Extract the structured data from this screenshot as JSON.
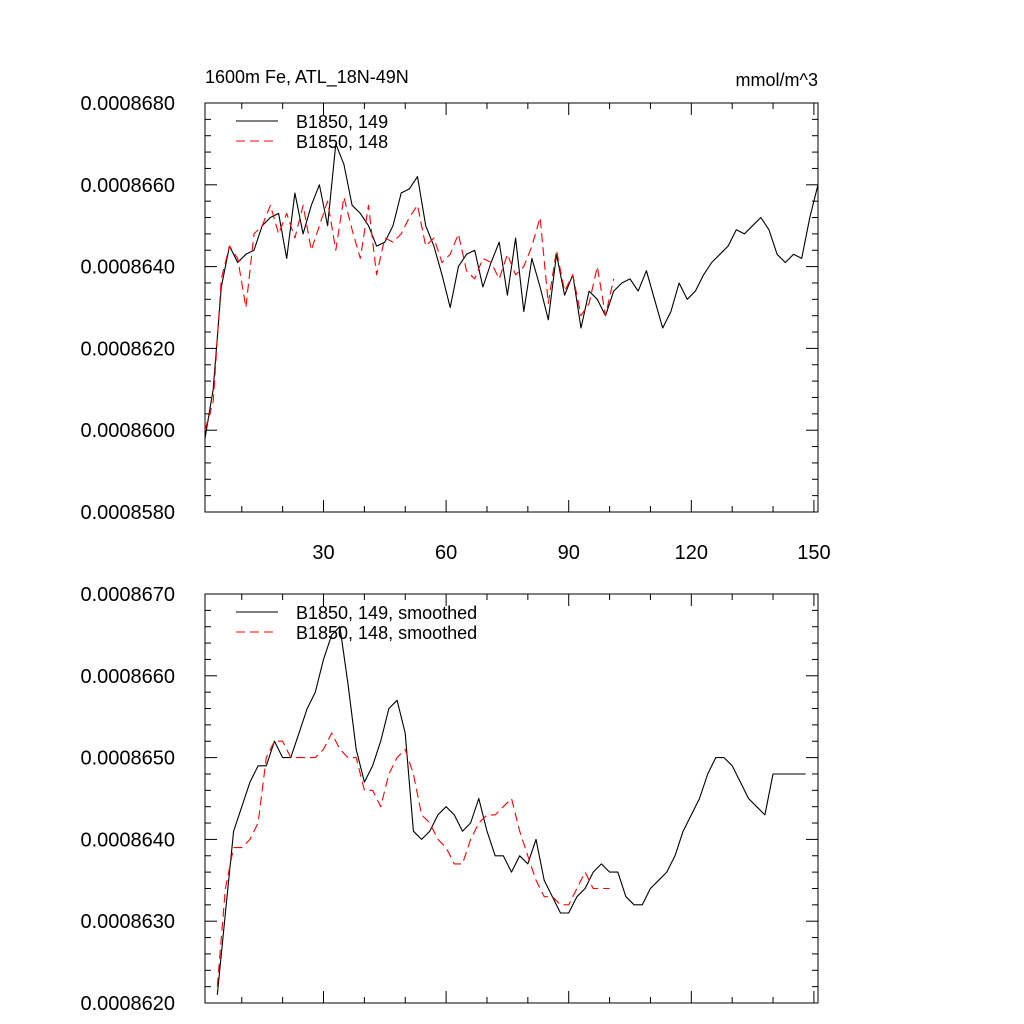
{
  "chart_data": [
    {
      "type": "line",
      "title": "1600m Fe, ATL_18N-49N",
      "units": "mmol/m^3",
      "xlim": [
        1,
        151
      ],
      "ylim": [
        0.000858,
        0.000868
      ],
      "x_ticks": [
        30,
        60,
        90,
        120,
        150
      ],
      "x_tick_labels": [
        "30",
        "60",
        "90",
        "120",
        "150"
      ],
      "y_ticks": [
        0.000858,
        0.00086,
        0.000862,
        0.000864,
        0.000866,
        0.000868
      ],
      "y_tick_labels": [
        "0.0008580",
        "0.0008600",
        "0.0008620",
        "0.0008640",
        "0.0008660",
        "0.0008680"
      ],
      "grid": false,
      "legend": "top-left",
      "series": [
        {
          "name": "B1850, 149",
          "color": "#000000",
          "dash": "solid",
          "x": [
            1,
            3,
            5,
            7,
            9,
            11,
            13,
            15,
            17,
            19,
            21,
            23,
            25,
            27,
            29,
            31,
            33,
            35,
            37,
            39,
            41,
            43,
            45,
            47,
            49,
            51,
            53,
            55,
            57,
            59,
            61,
            63,
            65,
            67,
            69,
            71,
            73,
            75,
            77,
            79,
            81,
            83,
            85,
            87,
            89,
            91,
            93,
            95,
            97,
            99,
            101,
            103,
            105,
            107,
            109,
            111,
            113,
            115,
            117,
            119,
            121,
            123,
            125,
            127,
            129,
            131,
            133,
            135,
            137,
            139,
            141,
            143,
            145,
            147,
            149,
            151
          ],
          "values": [
            0.0008598,
            0.000861,
            0.0008635,
            0.0008645,
            0.0008641,
            0.0008643,
            0.0008644,
            0.000865,
            0.0008652,
            0.0008653,
            0.0008642,
            0.0008658,
            0.0008648,
            0.0008655,
            0.000866,
            0.000865,
            0.000867,
            0.0008665,
            0.0008655,
            0.0008653,
            0.000865,
            0.0008645,
            0.0008646,
            0.000865,
            0.0008658,
            0.0008659,
            0.0008662,
            0.000865,
            0.0008645,
            0.0008638,
            0.000863,
            0.000864,
            0.0008643,
            0.0008644,
            0.0008635,
            0.0008641,
            0.0008646,
            0.0008633,
            0.0008647,
            0.0008629,
            0.0008642,
            0.0008635,
            0.0008627,
            0.0008643,
            0.0008633,
            0.0008638,
            0.0008625,
            0.0008634,
            0.0008632,
            0.0008628,
            0.0008634,
            0.0008636,
            0.0008637,
            0.0008634,
            0.0008639,
            0.0008632,
            0.0008625,
            0.0008629,
            0.0008636,
            0.0008632,
            0.0008634,
            0.0008638,
            0.0008641,
            0.0008643,
            0.0008645,
            0.0008649,
            0.0008648,
            0.000865,
            0.0008652,
            0.0008649,
            0.0008643,
            0.0008641,
            0.0008643,
            0.0008642,
            0.0008652,
            0.000866
          ]
        },
        {
          "name": "B1850, 148",
          "color": "#ff0000",
          "dash": "dashed",
          "x": [
            1,
            3,
            5,
            7,
            9,
            11,
            13,
            15,
            17,
            19,
            21,
            23,
            25,
            27,
            29,
            31,
            33,
            35,
            37,
            39,
            41,
            43,
            45,
            47,
            49,
            51,
            53,
            55,
            57,
            59,
            61,
            63,
            65,
            67,
            69,
            71,
            73,
            75,
            77,
            79,
            81,
            83,
            85,
            87,
            89,
            91,
            93,
            95,
            97,
            99,
            101
          ],
          "values": [
            0.00086,
            0.0008607,
            0.0008637,
            0.0008645,
            0.0008642,
            0.000863,
            0.0008648,
            0.000865,
            0.0008655,
            0.0008648,
            0.0008653,
            0.0008647,
            0.0008655,
            0.0008644,
            0.000865,
            0.0008656,
            0.0008644,
            0.0008657,
            0.0008649,
            0.0008642,
            0.0008655,
            0.0008638,
            0.0008647,
            0.0008646,
            0.0008648,
            0.0008652,
            0.0008655,
            0.0008645,
            0.0008647,
            0.0008641,
            0.0008643,
            0.0008648,
            0.0008639,
            0.0008637,
            0.0008642,
            0.0008641,
            0.0008637,
            0.0008643,
            0.0008638,
            0.000864,
            0.0008645,
            0.0008652,
            0.0008631,
            0.0008644,
            0.0008634,
            0.0008638,
            0.0008628,
            0.0008631,
            0.000864,
            0.0008628,
            0.0008637
          ]
        }
      ]
    },
    {
      "type": "line",
      "xlim": [
        1,
        151
      ],
      "ylim": [
        0.000862,
        0.000867
      ],
      "y_ticks": [
        0.000862,
        0.000863,
        0.000864,
        0.000865,
        0.000866,
        0.000867
      ],
      "y_tick_labels": [
        "0.0008620",
        "0.0008630",
        "0.0008640",
        "0.0008650",
        "0.0008660",
        "0.0008670"
      ],
      "grid": false,
      "legend": "top-left",
      "series": [
        {
          "name": "B1850, 149, smoothed",
          "color": "#000000",
          "dash": "solid",
          "x": [
            4,
            6,
            8,
            10,
            12,
            14,
            16,
            18,
            20,
            22,
            24,
            26,
            28,
            30,
            32,
            34,
            36,
            38,
            40,
            42,
            44,
            46,
            48,
            50,
            52,
            54,
            56,
            58,
            60,
            62,
            64,
            66,
            68,
            70,
            72,
            74,
            76,
            78,
            80,
            82,
            84,
            86,
            88,
            90,
            92,
            94,
            96,
            98,
            100,
            102,
            104,
            106,
            108,
            110,
            112,
            114,
            116,
            118,
            120,
            122,
            124,
            126,
            128,
            130,
            132,
            134,
            136,
            138,
            140,
            142,
            144,
            146,
            148
          ],
          "values": [
            0.0008621,
            0.0008631,
            0.0008641,
            0.0008644,
            0.0008647,
            0.0008649,
            0.0008649,
            0.0008652,
            0.000865,
            0.000865,
            0.0008653,
            0.0008656,
            0.0008658,
            0.0008662,
            0.0008665,
            0.0008666,
            0.0008659,
            0.0008651,
            0.0008647,
            0.0008649,
            0.0008652,
            0.0008656,
            0.0008657,
            0.0008653,
            0.0008641,
            0.000864,
            0.0008641,
            0.0008643,
            0.0008644,
            0.0008643,
            0.0008641,
            0.0008642,
            0.0008645,
            0.0008641,
            0.0008638,
            0.0008638,
            0.0008636,
            0.0008638,
            0.0008637,
            0.000864,
            0.0008635,
            0.0008633,
            0.0008631,
            0.0008631,
            0.0008633,
            0.0008634,
            0.0008636,
            0.0008637,
            0.0008636,
            0.0008636,
            0.0008633,
            0.0008632,
            0.0008632,
            0.0008634,
            0.0008635,
            0.0008636,
            0.0008638,
            0.0008641,
            0.0008643,
            0.0008645,
            0.0008648,
            0.000865,
            0.000865,
            0.0008649,
            0.0008647,
            0.0008645,
            0.0008644,
            0.0008643,
            0.0008648,
            0.0008648,
            0.0008648,
            0.0008648,
            0.0008648
          ]
        },
        {
          "name": "B1850, 148, smoothed",
          "color": "#ff0000",
          "dash": "dashed",
          "x": [
            4,
            6,
            8,
            10,
            12,
            14,
            16,
            18,
            20,
            22,
            24,
            26,
            28,
            30,
            32,
            34,
            36,
            38,
            40,
            42,
            44,
            46,
            48,
            50,
            52,
            54,
            56,
            58,
            60,
            62,
            64,
            66,
            68,
            70,
            72,
            74,
            76,
            78,
            80,
            82,
            84,
            86,
            88,
            90,
            92,
            94,
            96,
            98,
            100
          ],
          "values": [
            0.0008622,
            0.0008634,
            0.0008639,
            0.0008639,
            0.000864,
            0.0008642,
            0.000865,
            0.0008652,
            0.0008652,
            0.000865,
            0.000865,
            0.000865,
            0.000865,
            0.0008651,
            0.0008653,
            0.0008651,
            0.000865,
            0.000865,
            0.0008646,
            0.0008646,
            0.0008644,
            0.0008648,
            0.000865,
            0.0008651,
            0.0008648,
            0.0008643,
            0.0008642,
            0.000864,
            0.0008639,
            0.0008637,
            0.0008637,
            0.000864,
            0.0008642,
            0.0008643,
            0.0008643,
            0.0008644,
            0.0008645,
            0.0008641,
            0.0008638,
            0.0008635,
            0.0008633,
            0.0008633,
            0.0008632,
            0.0008632,
            0.0008634,
            0.0008636,
            0.0008634,
            0.0008634,
            0.0008634
          ]
        }
      ]
    }
  ]
}
